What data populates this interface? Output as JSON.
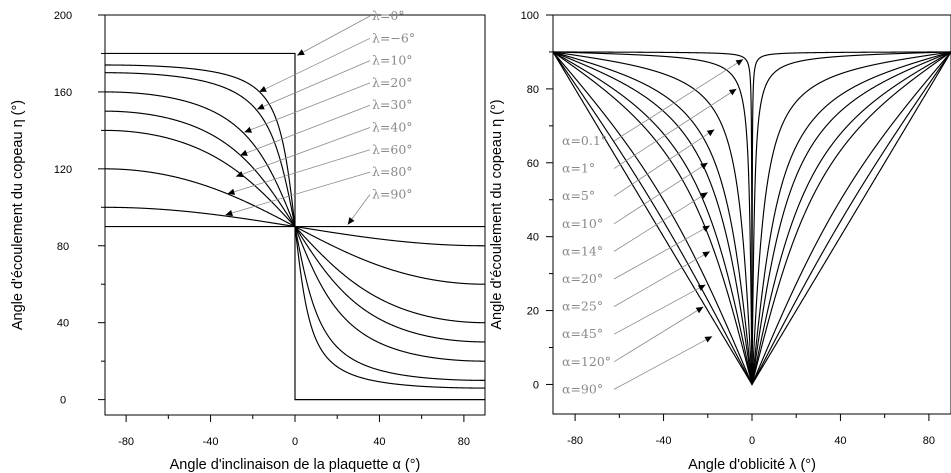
{
  "chart_data": [
    {
      "type": "line",
      "xlabel": "Angle d'inclinaison de la plaquette α (°)",
      "ylabel": "Angle d'écoulement du copeau η (°)",
      "xlim": [
        -90,
        90
      ],
      "ylim": [
        -8,
        200
      ],
      "xticks": [
        -80,
        -40,
        0,
        40,
        80
      ],
      "yticks": [
        0,
        40,
        80,
        120,
        160,
        200
      ],
      "tick_labels_x": [
        "-80",
        "-40",
        "0",
        "40",
        "80"
      ],
      "tick_labels_y": [
        "0",
        "40",
        "80",
        "120",
        "160",
        "200"
      ],
      "series": [
        {
          "name": "λ=0°",
          "lambda": 0
        },
        {
          "name": "λ=−6°",
          "lambda": -6
        },
        {
          "name": "λ=10°",
          "lambda": 10
        },
        {
          "name": "λ=20°",
          "lambda": 20
        },
        {
          "name": "λ=30°",
          "lambda": 30
        },
        {
          "name": "λ=40°",
          "lambda": 40
        },
        {
          "name": "λ=60°",
          "lambda": 60
        },
        {
          "name": "λ=80°",
          "lambda": 80
        },
        {
          "name": "λ=90°",
          "lambda": 90
        }
      ],
      "annotations": [
        {
          "text": "λ=0°",
          "x_pt": 1,
          "y_pt": 179
        },
        {
          "text": "λ=−6°",
          "x_pt": -17,
          "y_pt": 160
        },
        {
          "text": "λ=10°",
          "x_pt": -18,
          "y_pt": 151
        },
        {
          "text": "λ=20°",
          "x_pt": -24,
          "y_pt": 139
        },
        {
          "text": "λ=30°",
          "x_pt": -26,
          "y_pt": 127
        },
        {
          "text": "λ=40°",
          "x_pt": -28,
          "y_pt": 116
        },
        {
          "text": "λ=60°",
          "x_pt": -32,
          "y_pt": 107
        },
        {
          "text": "λ=80°",
          "x_pt": -33,
          "y_pt": 96
        },
        {
          "text": "λ=90°",
          "x_pt": 25,
          "y_pt": 91
        }
      ]
    },
    {
      "type": "line",
      "xlabel": "Angle d'oblicité λ (°)",
      "ylabel": "Angle d'écoulement du copeau η (°)",
      "xlim": [
        -90,
        90
      ],
      "ylim": [
        -8,
        100
      ],
      "xticks": [
        -80,
        -40,
        0,
        40,
        80
      ],
      "yticks": [
        0,
        20,
        40,
        60,
        80,
        100
      ],
      "tick_labels_x": [
        "-80",
        "-40",
        "0",
        "40",
        "80"
      ],
      "tick_labels_y": [
        "0",
        "20",
        "40",
        "60",
        "80",
        "100"
      ],
      "series": [
        {
          "name": "α=0.1°",
          "alpha": 0.1
        },
        {
          "name": "α=1°",
          "alpha": 1
        },
        {
          "name": "α=5°",
          "alpha": 5
        },
        {
          "name": "α=10°",
          "alpha": 10
        },
        {
          "name": "α=14°",
          "alpha": 14
        },
        {
          "name": "α=20°",
          "alpha": 20
        },
        {
          "name": "α=25°",
          "alpha": 25
        },
        {
          "name": "α=45°",
          "alpha": 45
        },
        {
          "name": "α=120°",
          "alpha": 120
        },
        {
          "name": "α=90°",
          "alpha": 90
        }
      ],
      "annotations": [
        {
          "text": "α=0.1°",
          "x_pt": -4,
          "y_pt": 88
        },
        {
          "text": "α=1°",
          "x_pt": -7,
          "y_pt": 80
        },
        {
          "text": "α=5°",
          "x_pt": -17,
          "y_pt": 69
        },
        {
          "text": "α=10°",
          "x_pt": -20,
          "y_pt": 60
        },
        {
          "text": "α=14°",
          "x_pt": -20,
          "y_pt": 52
        },
        {
          "text": "α=20°",
          "x_pt": -19,
          "y_pt": 43
        },
        {
          "text": "α=25°",
          "x_pt": -19,
          "y_pt": 36
        },
        {
          "text": "α=45°",
          "x_pt": -21,
          "y_pt": 27
        },
        {
          "text": "α=120°",
          "x_pt": -22,
          "y_pt": 21
        },
        {
          "text": "α=90°",
          "x_pt": -18,
          "y_pt": 13
        }
      ]
    }
  ]
}
